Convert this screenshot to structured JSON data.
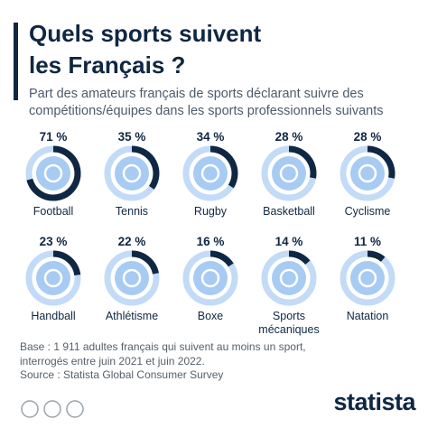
{
  "chart_data": {
    "type": "ring",
    "title": "Quels sports suivent les Français ?",
    "subtitle": "Part des amateurs français de sports déclarant suivre des compétitions/équipes dans les sports professionnels suivants",
    "categories": [
      "Football",
      "Tennis",
      "Rugby",
      "Basketball",
      "Cyclisme",
      "Handball",
      "Athlétisme",
      "Boxe",
      "Sports mécaniques",
      "Natation"
    ],
    "values": [
      71,
      35,
      34,
      28,
      28,
      23,
      22,
      16,
      14,
      11
    ],
    "value_labels": [
      "71 %",
      "35 %",
      "34 %",
      "28 %",
      "28 %",
      "23 %",
      "22 %",
      "16 %",
      "14 %",
      "11 %"
    ],
    "color": "#0f2742",
    "track_color": "#c3dbf6",
    "icon_color": "#a7cbf2",
    "note": "Base : 1 911 adultes français qui suivent au moins un sport, interrogés entre juin 2021 et juin 2022.",
    "source": "Source : Statista Global Consumer Survey",
    "logo": "statista"
  }
}
